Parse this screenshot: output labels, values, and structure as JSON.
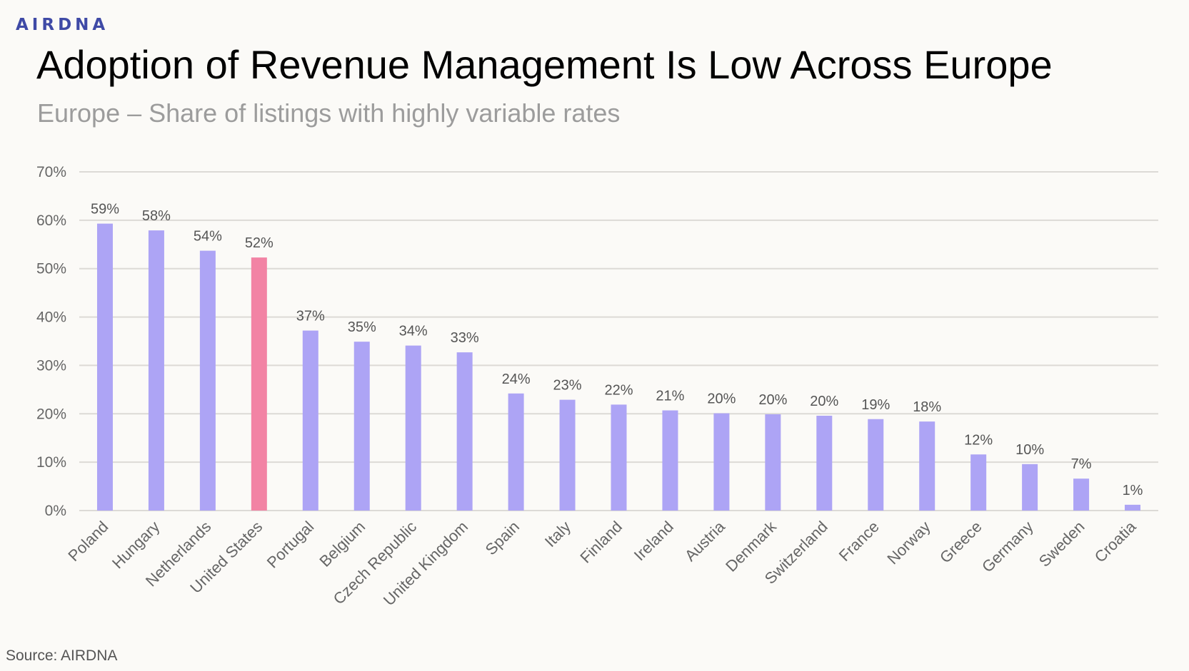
{
  "brand": {
    "logo_text": "AIRDNA",
    "logo_color": "#3f4aa6"
  },
  "header": {
    "title": "Adoption of Revenue Management Is Low Across Europe",
    "subtitle": "Europe – Share of listings with highly variable rates"
  },
  "footer": {
    "source": "Source: AIRDNA"
  },
  "colors": {
    "default_bar": "#ada4f5",
    "highlight_bar": "#f283a4"
  },
  "chart_data": {
    "type": "bar",
    "title": "Adoption of Revenue Management Is Low Across Europe",
    "subtitle": "Europe – Share of listings with highly variable rates",
    "xlabel": "",
    "ylabel": "",
    "ylim": [
      0,
      70
    ],
    "yticks": [
      0,
      10,
      20,
      30,
      40,
      50,
      60,
      70
    ],
    "ytick_labels": [
      "0%",
      "10%",
      "20%",
      "30%",
      "40%",
      "50%",
      "60%",
      "70%"
    ],
    "grid": true,
    "legend": "none",
    "categories": [
      "Poland",
      "Hungary",
      "Netherlands",
      "United States",
      "Portugal",
      "Belgium",
      "Czech Republic",
      "United Kingdom",
      "Spain",
      "Italy",
      "Finland",
      "Ireland",
      "Austria",
      "Denmark",
      "Switzerland",
      "France",
      "Norway",
      "Greece",
      "Germany",
      "Sweden",
      "Croatia"
    ],
    "values": [
      59.3,
      57.9,
      53.7,
      52.3,
      37.2,
      34.9,
      34.1,
      32.7,
      24.2,
      22.9,
      21.9,
      20.7,
      20.1,
      19.9,
      19.6,
      18.9,
      18.4,
      11.6,
      9.6,
      6.6,
      1.2
    ],
    "data_labels": [
      "59%",
      "58%",
      "54%",
      "52%",
      "37%",
      "35%",
      "34%",
      "33%",
      "24%",
      "23%",
      "22%",
      "21%",
      "20%",
      "20%",
      "20%",
      "19%",
      "18%",
      "12%",
      "10%",
      "7%",
      "1%"
    ],
    "highlight": [
      "United States"
    ]
  }
}
